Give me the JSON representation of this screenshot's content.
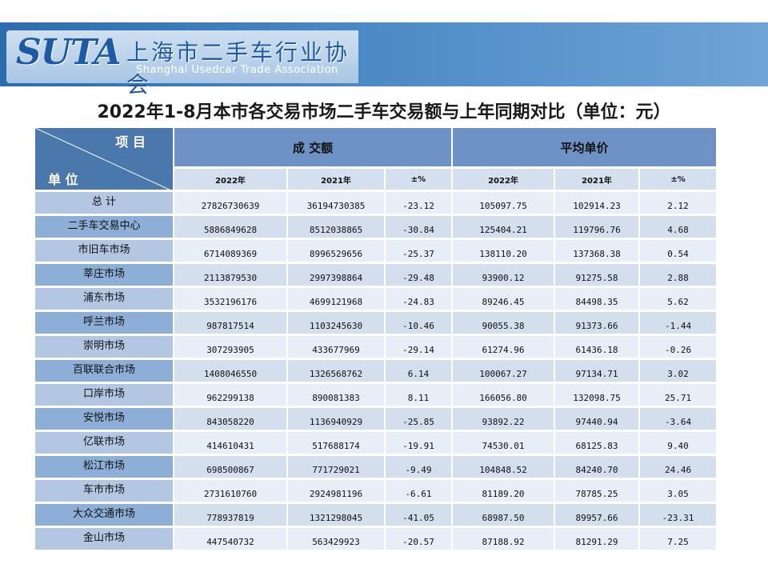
{
  "logo": {
    "mark": "SUTA",
    "name_cn": "上海市二手车行业协会",
    "name_en": "Shanghai Usedcar Trade Association"
  },
  "title": "2022年1-8月本市各交易市场二手车交易额与上年同期对比（单位：元）",
  "table": {
    "corner_top": "项 目",
    "corner_bottom": "单 位",
    "group_amount": "成 交额",
    "group_avg": "平均单价",
    "sub_headers": [
      "2022年",
      "2021年",
      "±%",
      "2022年",
      "2021年",
      "±%"
    ],
    "rows": [
      {
        "name": "总  计",
        "amount_2022": "27826730639",
        "amount_2021": "36194730385",
        "amount_pct": "-23.12",
        "avg_2022": "105097.75",
        "avg_2021": "102914.23",
        "avg_pct": "2.12"
      },
      {
        "name": "二手车交易中心",
        "amount_2022": "5886849628",
        "amount_2021": "8512038865",
        "amount_pct": "-30.84",
        "avg_2022": "125404.21",
        "avg_2021": "119796.76",
        "avg_pct": "4.68"
      },
      {
        "name": "市旧车市场",
        "amount_2022": "6714089369",
        "amount_2021": "8996529656",
        "amount_pct": "-25.37",
        "avg_2022": "138110.20",
        "avg_2021": "137368.38",
        "avg_pct": "0.54"
      },
      {
        "name": "莘庄市场",
        "amount_2022": "2113879530",
        "amount_2021": "2997398864",
        "amount_pct": "-29.48",
        "avg_2022": "93900.12",
        "avg_2021": "91275.58",
        "avg_pct": "2.88"
      },
      {
        "name": "浦东市场",
        "amount_2022": "3532196176",
        "amount_2021": "4699121968",
        "amount_pct": "-24.83",
        "avg_2022": "89246.45",
        "avg_2021": "84498.35",
        "avg_pct": "5.62"
      },
      {
        "name": "呼兰市场",
        "amount_2022": "987817514",
        "amount_2021": "1103245630",
        "amount_pct": "-10.46",
        "avg_2022": "90055.38",
        "avg_2021": "91373.66",
        "avg_pct": "-1.44"
      },
      {
        "name": "崇明市场",
        "amount_2022": "307293905",
        "amount_2021": "433677969",
        "amount_pct": "-29.14",
        "avg_2022": "61274.96",
        "avg_2021": "61436.18",
        "avg_pct": "-0.26"
      },
      {
        "name": "百联联合市场",
        "amount_2022": "1408046550",
        "amount_2021": "1326568762",
        "amount_pct": "6.14",
        "avg_2022": "100067.27",
        "avg_2021": "97134.71",
        "avg_pct": "3.02"
      },
      {
        "name": "口岸市场",
        "amount_2022": "962299138",
        "amount_2021": "890081383",
        "amount_pct": "8.11",
        "avg_2022": "166056.80",
        "avg_2021": "132098.75",
        "avg_pct": "25.71"
      },
      {
        "name": "安悦市场",
        "amount_2022": "843058220",
        "amount_2021": "1136940929",
        "amount_pct": "-25.85",
        "avg_2022": "93892.22",
        "avg_2021": "97440.94",
        "avg_pct": "-3.64"
      },
      {
        "name": "亿联市场",
        "amount_2022": "414610431",
        "amount_2021": "517688174",
        "amount_pct": "-19.91",
        "avg_2022": "74530.01",
        "avg_2021": "68125.83",
        "avg_pct": "9.40"
      },
      {
        "name": "松江市场",
        "amount_2022": "698500867",
        "amount_2021": "771729021",
        "amount_pct": "-9.49",
        "avg_2022": "104848.52",
        "avg_2021": "84240.70",
        "avg_pct": "24.46"
      },
      {
        "name": "车市市场",
        "amount_2022": "2731610760",
        "amount_2021": "2924981196",
        "amount_pct": "-6.61",
        "avg_2022": "81189.20",
        "avg_2021": "78785.25",
        "avg_pct": "3.05"
      },
      {
        "name": "大众交通市场",
        "amount_2022": "778937819",
        "amount_2021": "1321298045",
        "amount_pct": "-41.05",
        "avg_2022": "68987.50",
        "avg_2021": "89957.66",
        "avg_pct": "-23.31"
      },
      {
        "name": "金山市场",
        "amount_2022": "447540732",
        "amount_2021": "563429923",
        "amount_pct": "-20.57",
        "avg_2022": "87188.92",
        "avg_2021": "81291.29",
        "avg_pct": "7.25"
      }
    ]
  }
}
